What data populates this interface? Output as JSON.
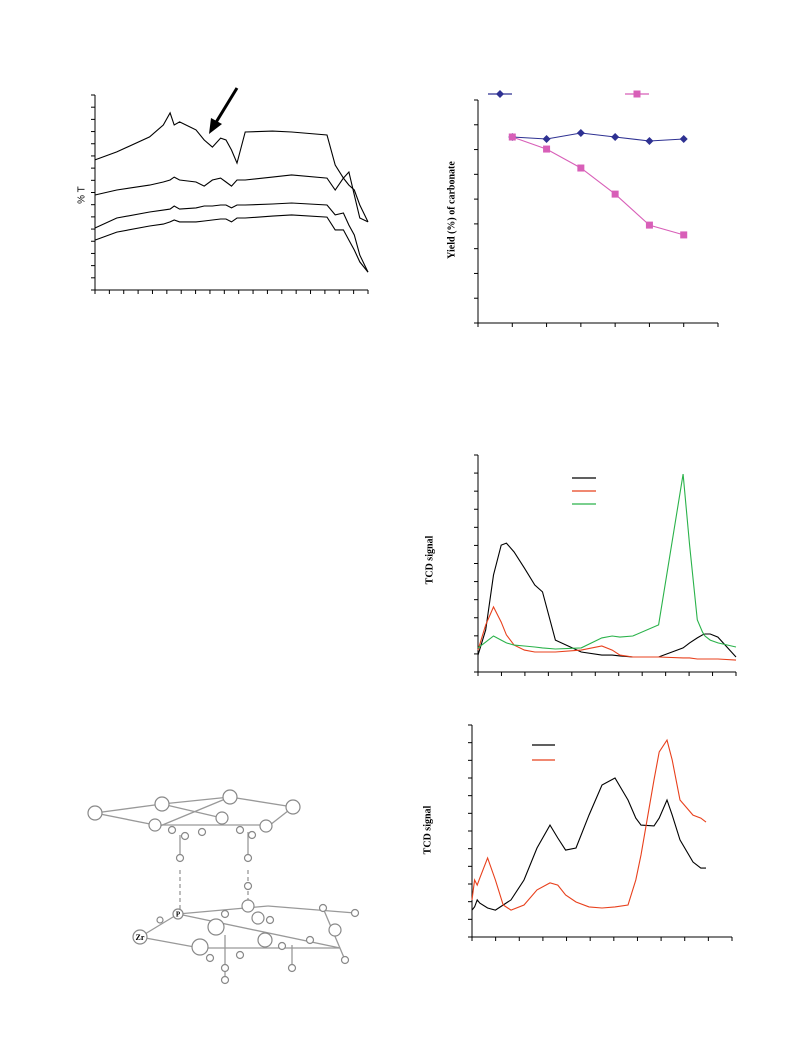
{
  "chart_data": [
    {
      "type": "line",
      "y_label": "% T",
      "xlim": [
        0,
        100
      ],
      "ylim": [
        0,
        100
      ],
      "x": [
        0,
        8,
        20,
        25,
        27.5,
        29,
        31,
        37,
        40,
        43,
        46,
        48,
        50,
        52,
        55,
        65,
        72,
        85,
        88,
        91,
        93,
        95,
        97,
        100
      ],
      "series": [
        {
          "color": "#000000",
          "values": [
            66.7,
            70.8,
            78.5,
            84.6,
            90.8,
            84.6,
            86.2,
            82.1,
            76.9,
            73.3,
            77.9,
            76.9,
            71.8,
            65.1,
            81.0,
            81.5,
            81.0,
            79.5,
            64.1,
            57.4,
            60.5,
            48.7,
            36.9,
            34.9
          ]
        },
        {
          "color": "#000000",
          "values": [
            48.7,
            51.3,
            53.8,
            55.4,
            56.4,
            57.9,
            56.4,
            55.4,
            53.3,
            56.4,
            57.4,
            55.4,
            53.3,
            56.4,
            56.4,
            57.9,
            59.0,
            57.4,
            51.3,
            57.4,
            53.8,
            51.3,
            43.6,
            34.9
          ]
        },
        {
          "color": "#000000",
          "values": [
            31.8,
            36.9,
            40.0,
            41.0,
            41.5,
            43.1,
            41.5,
            42.1,
            43.1,
            43.1,
            43.6,
            43.6,
            42.1,
            43.6,
            43.6,
            44.1,
            44.6,
            43.6,
            38.5,
            39.5,
            33.3,
            28.2,
            17.9,
            9.2
          ]
        },
        {
          "color": "#000000",
          "values": [
            25.6,
            29.7,
            32.8,
            33.8,
            34.9,
            35.9,
            34.9,
            34.9,
            35.4,
            35.9,
            36.4,
            36.4,
            34.9,
            36.9,
            36.9,
            37.9,
            38.5,
            37.4,
            30.8,
            30.8,
            25.6,
            20.5,
            14.4,
            9.2
          ]
        }
      ]
    },
    {
      "type": "line",
      "y_label": "Yield (%) of carbonate",
      "xlim": [
        0,
        7
      ],
      "ylim": [
        0,
        100
      ],
      "x": [
        1,
        2,
        3,
        4,
        5,
        6
      ],
      "series": [
        {
          "color": "#2e3192",
          "marker": "diamond",
          "values": [
            83.4,
            82.5,
            85.2,
            83.4,
            81.6,
            82.5
          ]
        },
        {
          "color": "#d85fb8",
          "marker": "square",
          "values": [
            83.4,
            78.0,
            69.5,
            57.8,
            43.9,
            39.5
          ]
        }
      ]
    },
    {
      "type": "line",
      "y_label": "TCD signal",
      "xlim": [
        0,
        100
      ],
      "ylim": [
        0,
        100
      ],
      "x": [
        0,
        3,
        6,
        9,
        11,
        14,
        18,
        22,
        25,
        30,
        40,
        48,
        52,
        55,
        60,
        70,
        79.5,
        82,
        85,
        87,
        88,
        90,
        93,
        100
      ],
      "series": [
        {
          "color": "#000000",
          "values": [
            7.8,
            19.4,
            44.7,
            58.5,
            59.4,
            55.3,
            47.9,
            40.1,
            36.9,
            14.7,
            9.2,
            7.8,
            7.8,
            7.4,
            6.9,
            6.9,
            11.1,
            13.4,
            15.7,
            17.1,
            17.5,
            17.5,
            16.1,
            6.9
          ]
        },
        {
          "color": "#e8401c",
          "values": [
            10.1,
            21.7,
            30.0,
            23.0,
            17.1,
            12.4,
            10.1,
            9.2,
            9.2,
            9.2,
            10.1,
            12.0,
            10.1,
            7.8,
            6.9,
            6.9,
            6.5,
            6.5,
            6.0,
            6.0,
            6.0,
            6.0,
            6.0,
            5.5
          ]
        },
        {
          "color": "#2ab24a",
          "values": [
            11.1,
            13.8,
            16.6,
            14.7,
            13.4,
            12.4,
            12.0,
            11.5,
            11.1,
            10.6,
            11.1,
            15.7,
            16.6,
            16.1,
            16.6,
            21.7,
            91.2,
            58.5,
            24.0,
            18.4,
            16.6,
            14.7,
            13.4,
            11.5
          ]
        }
      ]
    },
    {
      "type": "line",
      "y_label": "TCD signal",
      "xlim": [
        0,
        100
      ],
      "ylim": [
        0,
        100
      ],
      "x": [
        0,
        1,
        2,
        3,
        6,
        9,
        12,
        15,
        20,
        25,
        30,
        33,
        36,
        40,
        45,
        50,
        55,
        60,
        63,
        65,
        70,
        72,
        75,
        77,
        80,
        85,
        88,
        90
      ],
      "series": [
        {
          "color": "#000000",
          "values": [
            12.7,
            14.2,
            17.5,
            16.0,
            13.7,
            12.7,
            15.1,
            17.5,
            26.9,
            42.0,
            52.8,
            46.7,
            41.0,
            42.0,
            57.5,
            71.7,
            75.0,
            64.6,
            56.1,
            52.8,
            52.4,
            56.1,
            64.6,
            57.5,
            45.8,
            35.4,
            32.5,
            32.5
          ]
        },
        {
          "color": "#e8401c",
          "values": [
            17.5,
            26.9,
            24.5,
            27.8,
            37.3,
            26.9,
            15.1,
            12.7,
            15.1,
            22.2,
            25.5,
            24.5,
            19.8,
            16.5,
            14.2,
            13.7,
            14.2,
            15.1,
            26.9,
            38.7,
            74.1,
            87.3,
            92.9,
            83.5,
            64.6,
            57.5,
            56.1,
            54.2
          ]
        }
      ]
    }
  ],
  "diagram": {
    "labels": [
      "Zr",
      "P"
    ]
  }
}
